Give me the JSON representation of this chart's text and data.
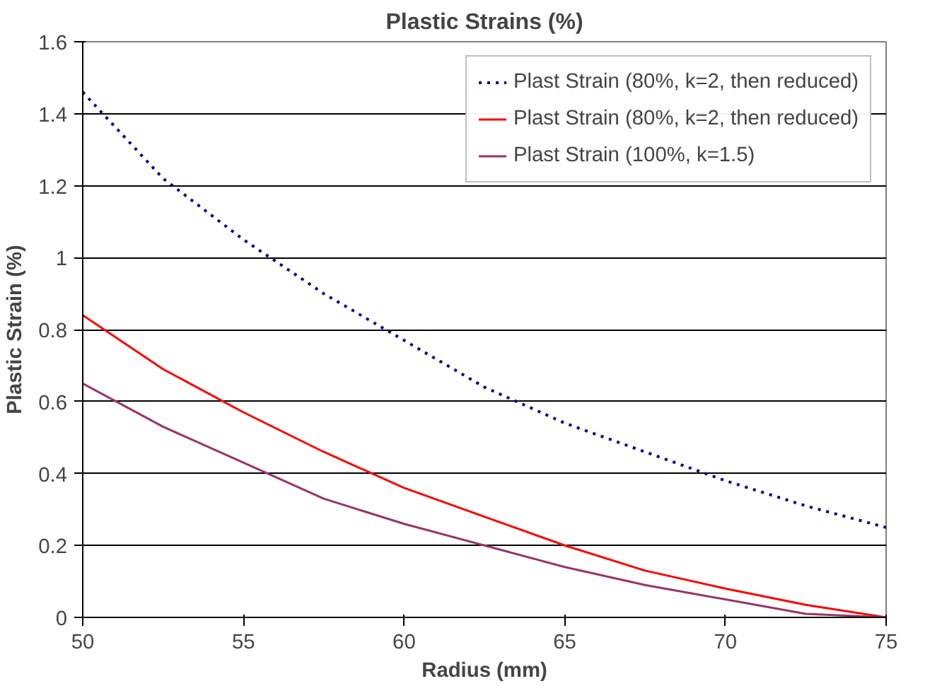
{
  "chart_data": {
    "type": "line",
    "title": "Plastic Strains (%)",
    "xlabel": "Radius (mm)",
    "ylabel": "Plastic Strain (%)",
    "x": [
      50,
      52.5,
      55,
      57.5,
      60,
      62.5,
      65,
      67.5,
      70,
      72.5,
      75
    ],
    "series": [
      {
        "name": "Plast Strain (80%, k=2, then reduced)",
        "color": "#000080",
        "line_style": "dotted",
        "values": [
          1.46,
          1.22,
          1.05,
          0.9,
          0.77,
          0.64,
          0.54,
          0.46,
          0.38,
          0.31,
          0.25
        ]
      },
      {
        "name": "Plast Strain (80%, k=2, then reduced)",
        "color": "#ff0000",
        "line_style": "solid",
        "values": [
          0.84,
          0.69,
          0.57,
          0.46,
          0.36,
          0.28,
          0.2,
          0.13,
          0.08,
          0.035,
          0
        ]
      },
      {
        "name": "Plast Strain (100%, k=1.5)",
        "color": "#993366",
        "line_style": "solid",
        "values": [
          0.65,
          0.53,
          0.43,
          0.33,
          0.26,
          0.2,
          0.14,
          0.09,
          0.05,
          0.01,
          0
        ]
      }
    ],
    "xlim": [
      50,
      75
    ],
    "xticks": [
      50,
      55,
      60,
      65,
      70,
      75
    ],
    "ylim": [
      0,
      1.6
    ],
    "yticks": [
      0,
      {
        "value": 0.2,
        "label": "0.2"
      },
      {
        "value": 0.4,
        "label": "0.4"
      },
      {
        "value": 0.6,
        "label": "0.6"
      },
      {
        "value": 0.8,
        "label": "0.8"
      },
      1,
      {
        "value": 1.2,
        "label": "1.2"
      },
      {
        "value": 1.4,
        "label": "1.4"
      },
      {
        "value": 1.6,
        "label": "1.6"
      }
    ],
    "grid": "y",
    "legend": "top right",
    "marker": "none"
  }
}
